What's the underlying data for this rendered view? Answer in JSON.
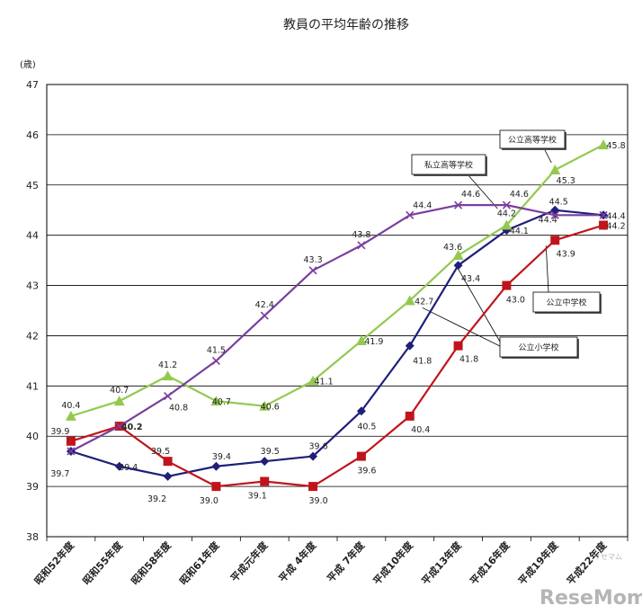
{
  "chart_data": {
    "type": "line",
    "title": "教員の平均年齢の推移",
    "ylabel": "(歳)",
    "xlabel": "",
    "ylim": [
      38,
      47
    ],
    "yticks": [
      38,
      39,
      40,
      41,
      42,
      43,
      44,
      45,
      46,
      47
    ],
    "grid": true,
    "categories": [
      "昭和52年度",
      "昭和55年度",
      "昭和58年度",
      "昭和61年度",
      "平成元年度",
      "平成 4年度",
      "平成 7年度",
      "平成10年度",
      "平成13年度",
      "平成16年度",
      "平成19年度",
      "平成22年度"
    ],
    "series": [
      {
        "name": "公立小学校",
        "color": "#1f1f7a",
        "marker": "diamond",
        "values": [
          39.7,
          39.4,
          39.2,
          39.4,
          39.5,
          39.6,
          40.5,
          41.8,
          43.4,
          44.1,
          44.5,
          44.4
        ],
        "labels": [
          "39.7",
          "39.4",
          "39.2",
          "39.4",
          "39.5",
          "39.6",
          "40.5",
          "41.8",
          "43.4",
          "44.1",
          "44.5",
          "44.4"
        ]
      },
      {
        "name": "公立中学校",
        "color": "#c0141b",
        "marker": "square",
        "values": [
          39.9,
          40.2,
          39.5,
          39.0,
          39.1,
          39.0,
          39.6,
          40.4,
          41.8,
          43.0,
          43.9,
          44.2
        ],
        "labels": [
          "39.9",
          "40.2",
          "39.5",
          "39.0",
          "39.1",
          "39.0",
          "39.6",
          "40.4",
          "41.8",
          "43.0",
          "43.9",
          "44.2"
        ]
      },
      {
        "name": "公立高等学校",
        "color": "#93c94e",
        "marker": "triangle",
        "values": [
          40.4,
          40.7,
          41.2,
          40.7,
          40.6,
          41.1,
          41.9,
          42.7,
          43.6,
          44.2,
          45.3,
          45.8
        ],
        "labels": [
          "40.4",
          "40.7",
          "41.2",
          "40.7",
          "40.6",
          "41.1",
          "41.9",
          "42.7",
          "43.6",
          "44.2",
          "45.3",
          "45.8"
        ]
      },
      {
        "name": "私立高等学校",
        "color": "#7a3f9e",
        "marker": "x",
        "values": [
          39.7,
          40.2,
          40.8,
          41.5,
          42.4,
          43.3,
          43.8,
          44.4,
          44.6,
          44.6,
          44.4,
          44.4
        ],
        "labels": [
          "",
          "",
          "40.8",
          "41.5",
          "42.4",
          "43.3",
          "43.8",
          "44.4",
          "44.6",
          "44.6",
          "44.4",
          ""
        ]
      }
    ],
    "callouts": [
      "公立高等学校",
      "私立高等学校",
      "公立中学校",
      "公立小学校"
    ]
  },
  "watermark": {
    "main": "ReseMom",
    "small": "リセマム"
  }
}
